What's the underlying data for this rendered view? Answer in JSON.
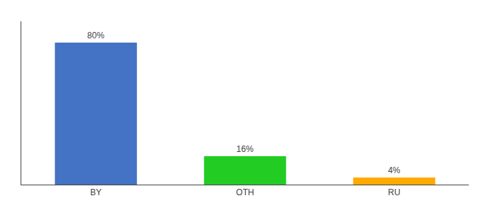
{
  "chart_data": {
    "type": "bar",
    "categories": [
      "BY",
      "OTH",
      "RU"
    ],
    "values": [
      80,
      16,
      4
    ],
    "value_labels": [
      "80%",
      "16%",
      "4%"
    ],
    "colors": [
      "#4472c4",
      "#22cc22",
      "#ffaa00"
    ],
    "ylim": [
      0,
      92
    ],
    "grid": false,
    "data_labels": true,
    "tick_labels": "x"
  }
}
